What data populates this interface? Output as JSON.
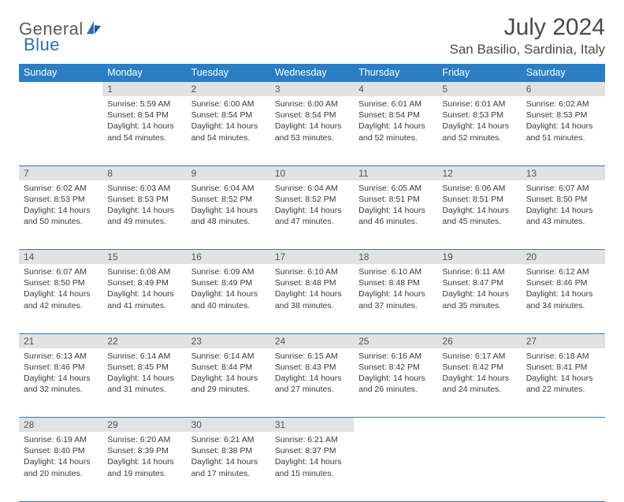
{
  "brand": {
    "name1": "General",
    "name2": "Blue"
  },
  "title": "July 2024",
  "location": "San Basilio, Sardinia, Italy",
  "colors": {
    "header_bg": "#2b7dc4",
    "header_fg": "#ffffff",
    "daynum_bg": "#e2e2e2",
    "rule": "#2b7dc4",
    "text": "#3a3a3a",
    "logo_gray": "#5a5a5a",
    "logo_blue": "#2b6fb5"
  },
  "weekdays": [
    "Sunday",
    "Monday",
    "Tuesday",
    "Wednesday",
    "Thursday",
    "Friday",
    "Saturday"
  ],
  "weeks": [
    {
      "nums": [
        "",
        "1",
        "2",
        "3",
        "4",
        "5",
        "6"
      ],
      "cells": [
        null,
        {
          "sunrise": "5:59 AM",
          "sunset": "8:54 PM",
          "dl": "14 hours and 54 minutes."
        },
        {
          "sunrise": "6:00 AM",
          "sunset": "8:54 PM",
          "dl": "14 hours and 54 minutes."
        },
        {
          "sunrise": "6:00 AM",
          "sunset": "8:54 PM",
          "dl": "14 hours and 53 minutes."
        },
        {
          "sunrise": "6:01 AM",
          "sunset": "8:54 PM",
          "dl": "14 hours and 52 minutes."
        },
        {
          "sunrise": "6:01 AM",
          "sunset": "8:53 PM",
          "dl": "14 hours and 52 minutes."
        },
        {
          "sunrise": "6:02 AM",
          "sunset": "8:53 PM",
          "dl": "14 hours and 51 minutes."
        }
      ]
    },
    {
      "nums": [
        "7",
        "8",
        "9",
        "10",
        "11",
        "12",
        "13"
      ],
      "cells": [
        {
          "sunrise": "6:02 AM",
          "sunset": "8:53 PM",
          "dl": "14 hours and 50 minutes."
        },
        {
          "sunrise": "6:03 AM",
          "sunset": "8:53 PM",
          "dl": "14 hours and 49 minutes."
        },
        {
          "sunrise": "6:04 AM",
          "sunset": "8:52 PM",
          "dl": "14 hours and 48 minutes."
        },
        {
          "sunrise": "6:04 AM",
          "sunset": "8:52 PM",
          "dl": "14 hours and 47 minutes."
        },
        {
          "sunrise": "6:05 AM",
          "sunset": "8:51 PM",
          "dl": "14 hours and 46 minutes."
        },
        {
          "sunrise": "6:06 AM",
          "sunset": "8:51 PM",
          "dl": "14 hours and 45 minutes."
        },
        {
          "sunrise": "6:07 AM",
          "sunset": "8:50 PM",
          "dl": "14 hours and 43 minutes."
        }
      ]
    },
    {
      "nums": [
        "14",
        "15",
        "16",
        "17",
        "18",
        "19",
        "20"
      ],
      "cells": [
        {
          "sunrise": "6:07 AM",
          "sunset": "8:50 PM",
          "dl": "14 hours and 42 minutes."
        },
        {
          "sunrise": "6:08 AM",
          "sunset": "8:49 PM",
          "dl": "14 hours and 41 minutes."
        },
        {
          "sunrise": "6:09 AM",
          "sunset": "8:49 PM",
          "dl": "14 hours and 40 minutes."
        },
        {
          "sunrise": "6:10 AM",
          "sunset": "8:48 PM",
          "dl": "14 hours and 38 minutes."
        },
        {
          "sunrise": "6:10 AM",
          "sunset": "8:48 PM",
          "dl": "14 hours and 37 minutes."
        },
        {
          "sunrise": "6:11 AM",
          "sunset": "8:47 PM",
          "dl": "14 hours and 35 minutes."
        },
        {
          "sunrise": "6:12 AM",
          "sunset": "8:46 PM",
          "dl": "14 hours and 34 minutes."
        }
      ]
    },
    {
      "nums": [
        "21",
        "22",
        "23",
        "24",
        "25",
        "26",
        "27"
      ],
      "cells": [
        {
          "sunrise": "6:13 AM",
          "sunset": "8:46 PM",
          "dl": "14 hours and 32 minutes."
        },
        {
          "sunrise": "6:14 AM",
          "sunset": "8:45 PM",
          "dl": "14 hours and 31 minutes."
        },
        {
          "sunrise": "6:14 AM",
          "sunset": "8:44 PM",
          "dl": "14 hours and 29 minutes."
        },
        {
          "sunrise": "6:15 AM",
          "sunset": "8:43 PM",
          "dl": "14 hours and 27 minutes."
        },
        {
          "sunrise": "6:16 AM",
          "sunset": "8:42 PM",
          "dl": "14 hours and 26 minutes."
        },
        {
          "sunrise": "6:17 AM",
          "sunset": "8:42 PM",
          "dl": "14 hours and 24 minutes."
        },
        {
          "sunrise": "6:18 AM",
          "sunset": "8:41 PM",
          "dl": "14 hours and 22 minutes."
        }
      ]
    },
    {
      "nums": [
        "28",
        "29",
        "30",
        "31",
        "",
        "",
        ""
      ],
      "cells": [
        {
          "sunrise": "6:19 AM",
          "sunset": "8:40 PM",
          "dl": "14 hours and 20 minutes."
        },
        {
          "sunrise": "6:20 AM",
          "sunset": "8:39 PM",
          "dl": "14 hours and 19 minutes."
        },
        {
          "sunrise": "6:21 AM",
          "sunset": "8:38 PM",
          "dl": "14 hours and 17 minutes."
        },
        {
          "sunrise": "6:21 AM",
          "sunset": "8:37 PM",
          "dl": "14 hours and 15 minutes."
        },
        null,
        null,
        null
      ]
    }
  ],
  "labels": {
    "sunrise": "Sunrise:",
    "sunset": "Sunset:",
    "daylight": "Daylight:"
  }
}
